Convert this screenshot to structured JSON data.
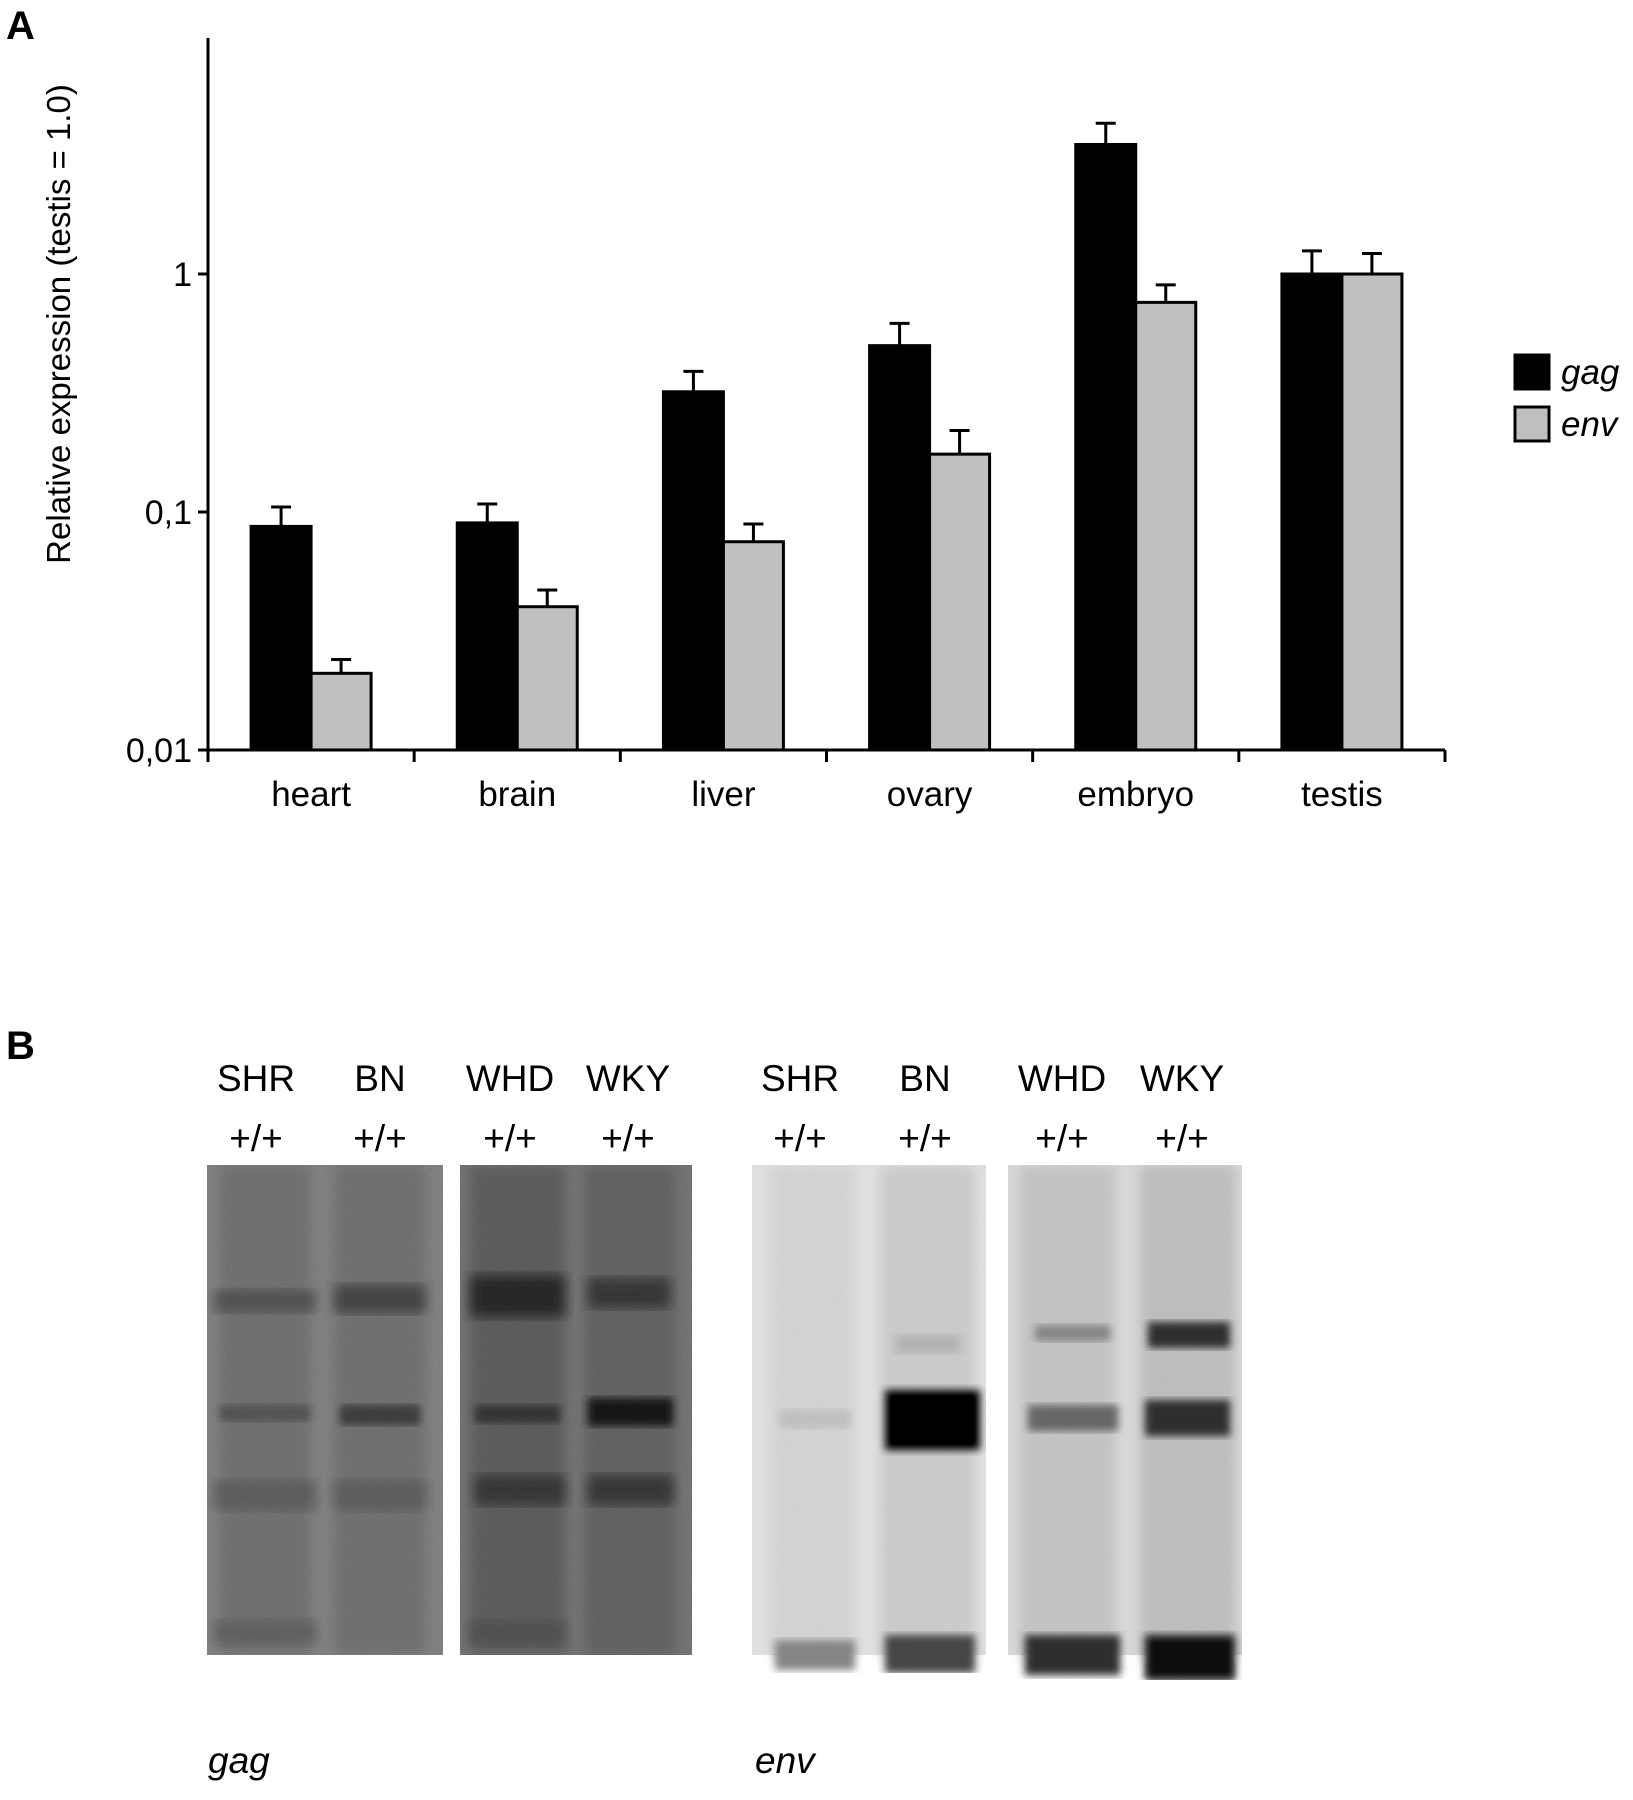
{
  "panel_a": {
    "letter": "A"
  },
  "panel_b": {
    "letter": "B"
  },
  "chart_data": {
    "type": "bar",
    "ylabel": "Relative expression (testis = 1.0)",
    "yscale": "log",
    "ylim": [
      0.01,
      10
    ],
    "yticks": [
      {
        "value": 0.01,
        "label": "0,01"
      },
      {
        "value": 0.1,
        "label": "0,1"
      },
      {
        "value": 1,
        "label": "1"
      }
    ],
    "categories": [
      "heart",
      "brain",
      "liver",
      "ovary",
      "embryo",
      "testis"
    ],
    "series": [
      {
        "name": "gag",
        "color": "#000000",
        "values": [
          0.087,
          0.09,
          0.32,
          0.5,
          3.5,
          1.0
        ],
        "errors": [
          0.105,
          0.108,
          0.39,
          0.62,
          4.3,
          1.25
        ]
      },
      {
        "name": "env",
        "color": "#c0c0c0",
        "values": [
          0.021,
          0.04,
          0.075,
          0.175,
          0.76,
          1.0
        ],
        "errors": [
          0.024,
          0.047,
          0.089,
          0.22,
          0.9,
          1.22
        ]
      }
    ],
    "legend": "right"
  },
  "gels": [
    {
      "caption": "gag",
      "lanes": [
        {
          "strain": "SHR",
          "genotype": "+/+"
        },
        {
          "strain": "BN",
          "genotype": "+/+"
        },
        {
          "strain": "WHD",
          "genotype": "+/+"
        },
        {
          "strain": "WKY",
          "genotype": "+/+"
        }
      ]
    },
    {
      "caption": "env",
      "lanes": [
        {
          "strain": "SHR",
          "genotype": "+/+"
        },
        {
          "strain": "BN",
          "genotype": "+/+"
        },
        {
          "strain": "WHD",
          "genotype": "+/+"
        },
        {
          "strain": "WKY",
          "genotype": "+/+"
        }
      ]
    }
  ]
}
